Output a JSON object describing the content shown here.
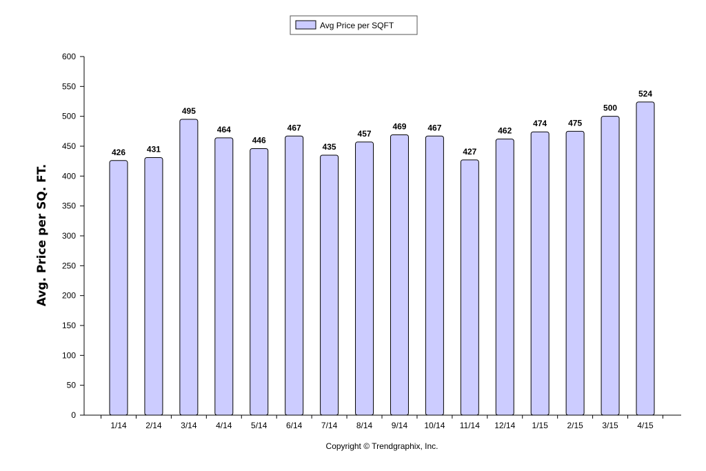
{
  "chart_data": {
    "type": "bar",
    "categories": [
      "1/14",
      "2/14",
      "3/14",
      "4/14",
      "5/14",
      "6/14",
      "7/14",
      "8/14",
      "9/14",
      "10/14",
      "11/14",
      "12/14",
      "1/15",
      "2/15",
      "3/15",
      "4/15"
    ],
    "series": [
      {
        "name": "Avg Price per SQFT",
        "values": [
          426,
          431,
          495,
          464,
          446,
          467,
          435,
          457,
          469,
          467,
          427,
          462,
          474,
          475,
          500,
          524
        ],
        "color": "#ccccff"
      }
    ],
    "ylabel": "Avg. Price per SQ. FT.",
    "xlabel": "",
    "ylim": [
      0,
      600
    ],
    "yticks": [
      0,
      50,
      100,
      150,
      200,
      250,
      300,
      350,
      400,
      450,
      500,
      550,
      600
    ],
    "grid": false,
    "legend": "top-center",
    "data_labels": true
  },
  "footer": {
    "copyright": "Copyright © Trendgraphix, Inc."
  },
  "colors": {
    "bar_fill": "#ccccff",
    "bar_stroke": "#000000",
    "axis": "#000000"
  }
}
